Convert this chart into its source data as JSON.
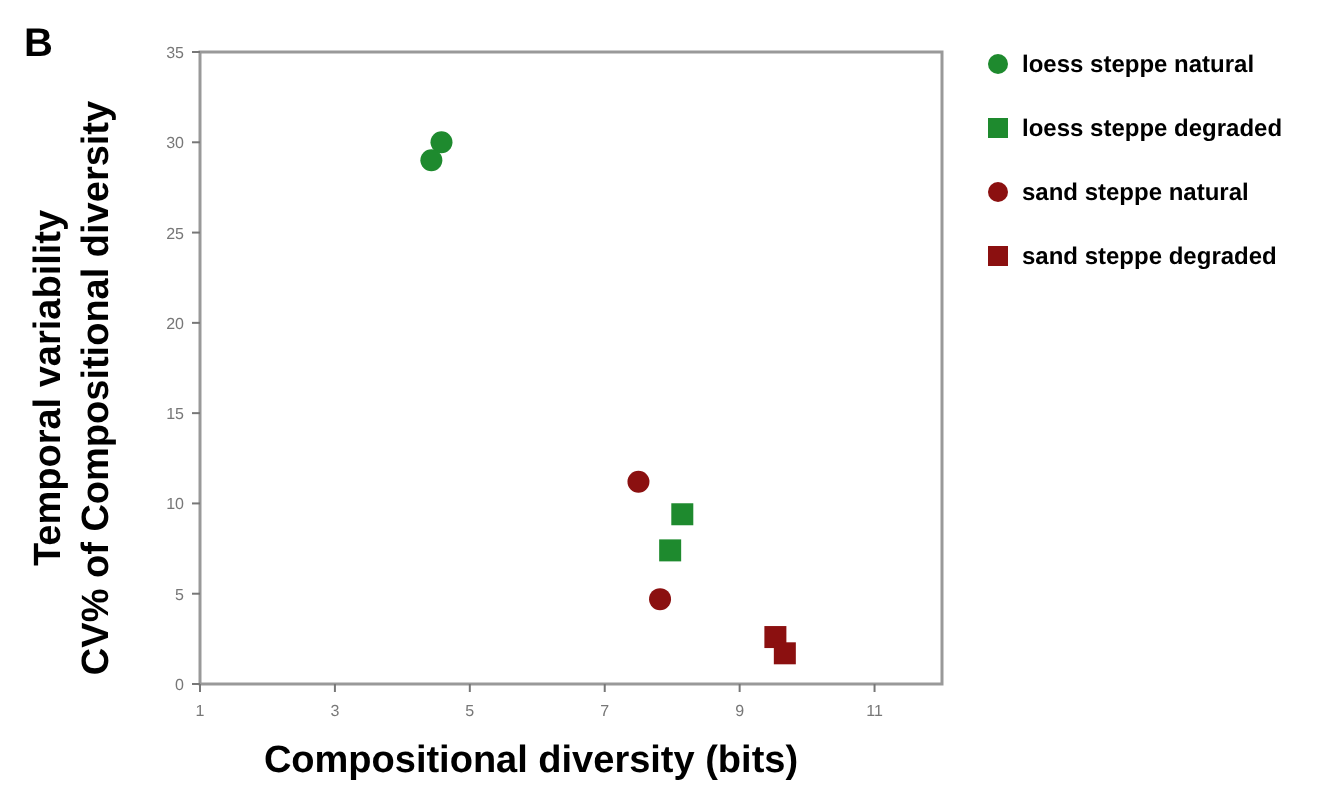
{
  "chart_data": {
    "type": "scatter",
    "title": "B",
    "xlabel": "Compositional diversity (bits)",
    "ylabel": "Temporal variability\nCV% of Compositional diversity",
    "xlim": [
      1,
      12
    ],
    "xticks": [
      1,
      3,
      5,
      7,
      9,
      11
    ],
    "ylim": [
      0,
      35
    ],
    "yticks": [
      0,
      5,
      10,
      15,
      20,
      25,
      30,
      35
    ],
    "grid": false,
    "legend": "right",
    "series": [
      {
        "name": "loess steppe natural",
        "color": "#1e8a2e",
        "marker": "circle",
        "x": [
          4.58,
          4.43
        ],
        "values": [
          30.0,
          29.0
        ]
      },
      {
        "name": "loess steppe degraded",
        "color": "#1e8a2e",
        "marker": "square",
        "x": [
          8.15,
          7.97
        ],
        "values": [
          9.4,
          7.4
        ]
      },
      {
        "name": "sand steppe natural",
        "color": "#8b1010",
        "marker": "circle",
        "x": [
          7.5,
          7.82
        ],
        "values": [
          11.2,
          4.7
        ]
      },
      {
        "name": "sand steppe degraded",
        "color": "#8b1010",
        "marker": "square",
        "x": [
          9.53,
          9.67
        ],
        "values": [
          2.6,
          1.7
        ]
      }
    ]
  }
}
